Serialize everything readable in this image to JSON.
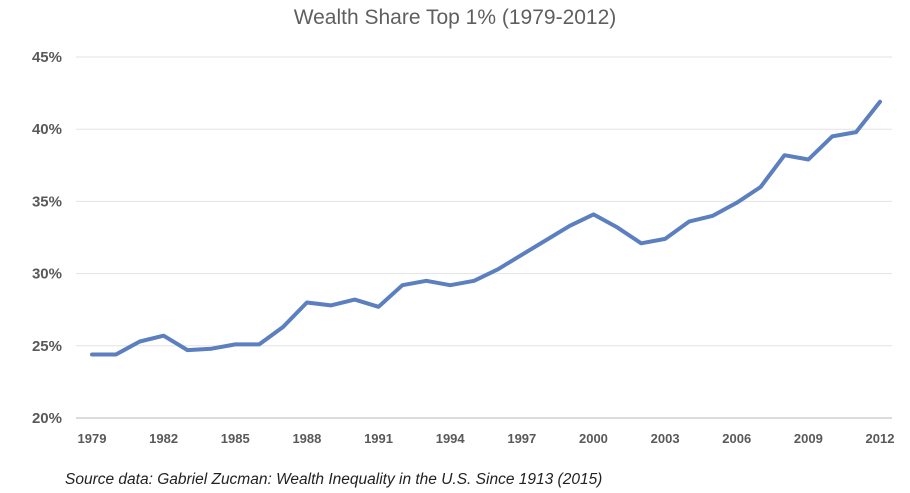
{
  "chart_data": {
    "type": "line",
    "title": "Wealth Share Top 1% (1979-2012)",
    "xlabel": "",
    "ylabel": "",
    "ylim": [
      20,
      45
    ],
    "y_ticks": [
      "20%",
      "25%",
      "30%",
      "35%",
      "40%",
      "45%"
    ],
    "x_tick_labels": [
      "1979",
      "1982",
      "1985",
      "1988",
      "1991",
      "1994",
      "1997",
      "2000",
      "2003",
      "2006",
      "2009",
      "2012"
    ],
    "x": [
      1979,
      1980,
      1981,
      1982,
      1983,
      1984,
      1985,
      1986,
      1987,
      1988,
      1989,
      1990,
      1991,
      1992,
      1993,
      1994,
      1995,
      1996,
      1997,
      1998,
      1999,
      2000,
      2001,
      2002,
      2003,
      2004,
      2005,
      2006,
      2007,
      2008,
      2009,
      2010,
      2011,
      2012
    ],
    "series": [
      {
        "values": [
          24.4,
          24.4,
          25.3,
          25.7,
          24.7,
          24.8,
          25.1,
          25.1,
          26.3,
          28.0,
          27.8,
          28.2,
          27.7,
          29.2,
          29.5,
          29.2,
          29.5,
          30.3,
          31.3,
          32.3,
          33.3,
          34.1,
          33.2,
          32.1,
          32.4,
          33.6,
          34.0,
          34.9,
          36.0,
          38.2,
          37.9,
          39.5,
          39.8,
          41.9
        ],
        "color": "#5b7fbf"
      }
    ],
    "grid": true,
    "source_note": "Source data:  Gabriel Zucman:  Wealth Inequality in the U.S. Since 1913 (2015)"
  }
}
